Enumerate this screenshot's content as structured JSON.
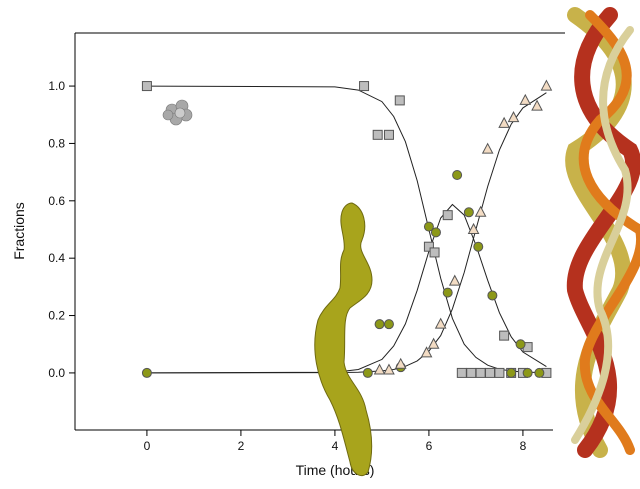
{
  "chart_data": {
    "type": "scatter",
    "x_label": "Time (hours)",
    "y_label": "Fractions",
    "xlim": [
      -1.53,
      8.64
    ],
    "ylim": [
      -0.199,
      1.185
    ],
    "xticks": [
      0,
      2,
      4,
      6,
      8
    ],
    "yticks": [
      {
        "value": 0,
        "label": "0.0"
      },
      {
        "value": 0.2,
        "label": "0.2"
      },
      {
        "value": 0.4,
        "label": "0.4"
      },
      {
        "value": 0.6,
        "label": "0.6"
      },
      {
        "value": 0.8,
        "label": "0.8"
      },
      {
        "value": 1,
        "label": "1.0"
      }
    ],
    "series": [
      {
        "marker": "square",
        "color": "#bdbdbd",
        "x": [
          0,
          4.62,
          5.38,
          4.91,
          5.15,
          6.4,
          6.0,
          6.12,
          6.7,
          6.9,
          7.1,
          7.3,
          7.5,
          7.6,
          7.75,
          8.0,
          8.1,
          8.5
        ],
        "values": [
          1.0,
          1.0,
          0.95,
          0.83,
          0.83,
          0.55,
          0.44,
          0.42,
          0.0,
          0.0,
          0.0,
          0.0,
          0.0,
          0.13,
          0.0,
          0.0,
          0.09,
          0.0
        ]
      },
      {
        "marker": "circle",
        "color": "#8c9818",
        "x": [
          0,
          4.7,
          4.95,
          5.15,
          5.4,
          6.0,
          6.15,
          6.4,
          6.6,
          6.85,
          7.05,
          7.35,
          7.75,
          7.95,
          8.1,
          8.35
        ],
        "values": [
          0.0,
          0.0,
          0.17,
          0.17,
          0.02,
          0.51,
          0.49,
          0.28,
          0.69,
          0.56,
          0.44,
          0.27,
          0.0,
          0.1,
          0.0,
          0.0
        ]
      },
      {
        "marker": "triangle",
        "color": "#f3dcc4",
        "x": [
          4.95,
          5.15,
          5.4,
          5.95,
          6.1,
          6.25,
          6.55,
          6.95,
          7.1,
          7.25,
          7.6,
          7.8,
          8.05,
          8.3,
          8.5
        ],
        "values": [
          0.01,
          0.01,
          0.03,
          0.07,
          0.1,
          0.17,
          0.32,
          0.5,
          0.56,
          0.78,
          0.87,
          0.89,
          0.95,
          0.93,
          1.0
        ]
      }
    ],
    "fits": [
      {
        "x": [
          0,
          4,
          4.5,
          5,
          5.25,
          5.5,
          5.75,
          6,
          6.25,
          6.5,
          6.75,
          7,
          7.25,
          7.5,
          7.75,
          8,
          8.5
        ],
        "values": [
          1,
          0.997,
          0.986,
          0.946,
          0.894,
          0.806,
          0.67,
          0.5,
          0.33,
          0.19,
          0.1,
          0.054,
          0.027,
          0.013,
          0.007,
          0.003,
          0.001
        ]
      },
      {
        "x": [
          0,
          4,
          4.5,
          5,
          5.25,
          5.5,
          5.75,
          6,
          6.25,
          6.5,
          6.75,
          7,
          7.25,
          7.5,
          7.75,
          8,
          8.5
        ],
        "values": [
          0,
          0.002,
          0.012,
          0.047,
          0.094,
          0.171,
          0.288,
          0.424,
          0.54,
          0.587,
          0.55,
          0.446,
          0.323,
          0.21,
          0.126,
          0.073,
          0.022
        ]
      },
      {
        "x": [
          0,
          4,
          4.5,
          5,
          5.25,
          5.5,
          5.75,
          6,
          6.25,
          6.5,
          6.75,
          7,
          7.25,
          7.5,
          7.75,
          8,
          8.5
        ],
        "values": [
          0,
          0.001,
          0.002,
          0.007,
          0.012,
          0.023,
          0.042,
          0.076,
          0.13,
          0.223,
          0.35,
          0.5,
          0.65,
          0.777,
          0.867,
          0.924,
          0.977
        ]
      }
    ]
  }
}
